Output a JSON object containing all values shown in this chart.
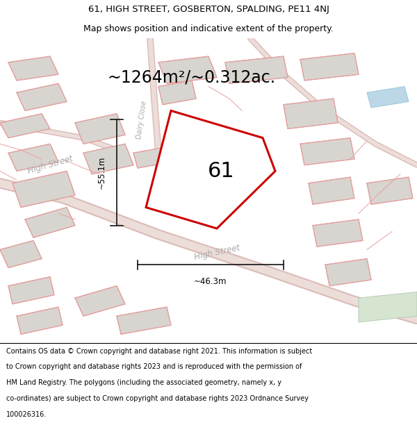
{
  "title_line1": "61, HIGH STREET, GOSBERTON, SPALDING, PE11 4NJ",
  "title_line2": "Map shows position and indicative extent of the property.",
  "area_label": "~1264m²/~0.312ac.",
  "property_number": "61",
  "dim_vertical": "~55.1m",
  "dim_horizontal": "~46.3m",
  "street_label_hs_left": "High Street",
  "street_label_hs_right": "High Street",
  "street_label_dc": "Dairy Close",
  "footer_lines": [
    "Contains OS data © Crown copyright and database right 2021. This information is subject",
    "to Crown copyright and database rights 2023 and is reproduced with the permission of",
    "HM Land Registry. The polygons (including the associated geometry, namely x, y",
    "co-ordinates) are subject to Crown copyright and database rights 2023 Ordnance Survey",
    "100026316."
  ],
  "map_bg": "#f2f0ed",
  "property_fill": "#ffffff",
  "property_edge": "#cc0000",
  "building_fill": "#d8d5d0",
  "building_edge": "#c8a8a0",
  "road_outer": "#dbbbb8",
  "road_inner": "#ecddd8",
  "pink_line": "#e8a0a0",
  "water_color": "#bcd8e8",
  "green_color": "#d5e5d0",
  "dim_line_color": "#111111",
  "street_text_color": "#aaaaaa",
  "title_fontsize": 9.5,
  "subtitle_fontsize": 9.0,
  "area_fontsize": 17,
  "number_fontsize": 22,
  "dim_fontsize": 8.5,
  "street_fontsize": 8.5,
  "footer_fontsize": 7.0
}
